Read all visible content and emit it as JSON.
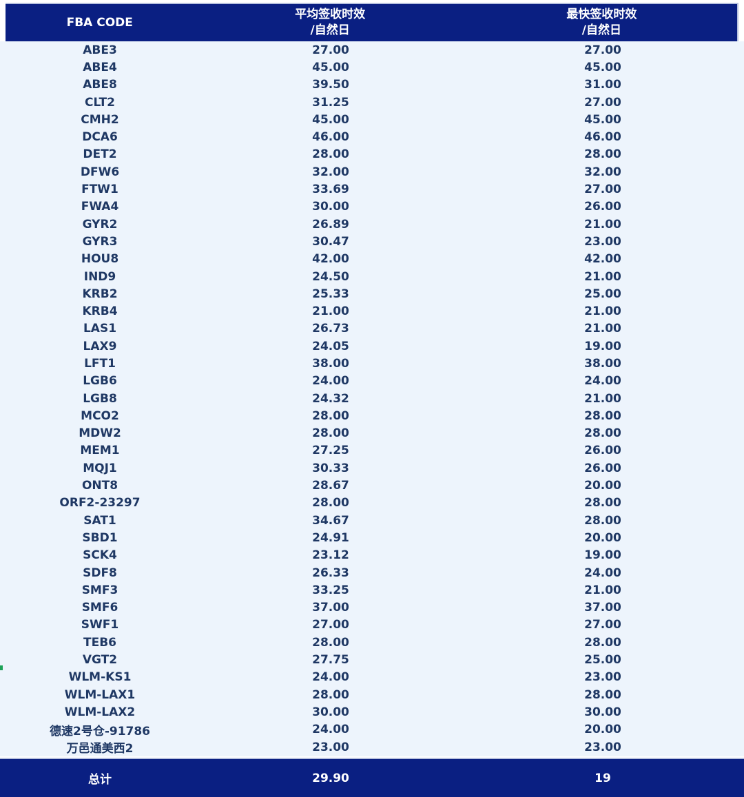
{
  "chart_data": {
    "type": "table",
    "title": "",
    "columns": [
      "FBA CODE",
      "平均签收时效/自然日",
      "最快签收时效/自然日"
    ],
    "header_lines": {
      "col1": [
        "FBA CODE"
      ],
      "col2": [
        "平均签收时效",
        "/自然日"
      ],
      "col3": [
        "最快签收时效",
        "/自然日"
      ]
    },
    "rows": [
      {
        "code": "ABE3",
        "avg": "27.00",
        "fastest": "27.00"
      },
      {
        "code": "ABE4",
        "avg": "45.00",
        "fastest": "45.00"
      },
      {
        "code": "ABE8",
        "avg": "39.50",
        "fastest": "31.00"
      },
      {
        "code": "CLT2",
        "avg": "31.25",
        "fastest": "27.00"
      },
      {
        "code": "CMH2",
        "avg": "45.00",
        "fastest": "45.00"
      },
      {
        "code": "DCA6",
        "avg": "46.00",
        "fastest": "46.00"
      },
      {
        "code": "DET2",
        "avg": "28.00",
        "fastest": "28.00"
      },
      {
        "code": "DFW6",
        "avg": "32.00",
        "fastest": "32.00"
      },
      {
        "code": "FTW1",
        "avg": "33.69",
        "fastest": "27.00"
      },
      {
        "code": "FWA4",
        "avg": "30.00",
        "fastest": "26.00"
      },
      {
        "code": "GYR2",
        "avg": "26.89",
        "fastest": "21.00"
      },
      {
        "code": "GYR3",
        "avg": "30.47",
        "fastest": "23.00"
      },
      {
        "code": "HOU8",
        "avg": "42.00",
        "fastest": "42.00"
      },
      {
        "code": "IND9",
        "avg": "24.50",
        "fastest": "21.00"
      },
      {
        "code": "KRB2",
        "avg": "25.33",
        "fastest": "25.00"
      },
      {
        "code": "KRB4",
        "avg": "21.00",
        "fastest": "21.00"
      },
      {
        "code": "LAS1",
        "avg": "26.73",
        "fastest": "21.00"
      },
      {
        "code": "LAX9",
        "avg": "24.05",
        "fastest": "19.00"
      },
      {
        "code": "LFT1",
        "avg": "38.00",
        "fastest": "38.00"
      },
      {
        "code": "LGB6",
        "avg": "24.00",
        "fastest": "24.00"
      },
      {
        "code": "LGB8",
        "avg": "24.32",
        "fastest": "21.00"
      },
      {
        "code": "MCO2",
        "avg": "28.00",
        "fastest": "28.00"
      },
      {
        "code": "MDW2",
        "avg": "28.00",
        "fastest": "28.00"
      },
      {
        "code": "MEM1",
        "avg": "27.25",
        "fastest": "26.00"
      },
      {
        "code": "MQJ1",
        "avg": "30.33",
        "fastest": "26.00"
      },
      {
        "code": "ONT8",
        "avg": "28.67",
        "fastest": "20.00"
      },
      {
        "code": "ORF2-23297",
        "avg": "28.00",
        "fastest": "28.00"
      },
      {
        "code": "SAT1",
        "avg": "34.67",
        "fastest": "28.00"
      },
      {
        "code": "SBD1",
        "avg": "24.91",
        "fastest": "20.00"
      },
      {
        "code": "SCK4",
        "avg": "23.12",
        "fastest": "19.00"
      },
      {
        "code": "SDF8",
        "avg": "26.33",
        "fastest": "24.00"
      },
      {
        "code": "SMF3",
        "avg": "33.25",
        "fastest": "21.00"
      },
      {
        "code": "SMF6",
        "avg": "37.00",
        "fastest": "37.00"
      },
      {
        "code": "SWF1",
        "avg": "27.00",
        "fastest": "27.00"
      },
      {
        "code": "TEB6",
        "avg": "28.00",
        "fastest": "28.00"
      },
      {
        "code": "VGT2",
        "avg": "27.75",
        "fastest": "25.00"
      },
      {
        "code": "WLM-KS1",
        "avg": "24.00",
        "fastest": "23.00"
      },
      {
        "code": "WLM-LAX1",
        "avg": "28.00",
        "fastest": "28.00"
      },
      {
        "code": "WLM-LAX2",
        "avg": "30.00",
        "fastest": "30.00"
      },
      {
        "code": "德速2号仓-91786",
        "avg": "24.00",
        "fastest": "20.00"
      },
      {
        "code": "万邑通美西2",
        "avg": "23.00",
        "fastest": "23.00"
      }
    ],
    "footer": {
      "label": "总计",
      "avg": "29.90",
      "fastest": "19"
    }
  },
  "colors": {
    "header_bg": "#0a1f82",
    "body_bg": "#edf4fc",
    "body_text": "#1f3864",
    "header_text": "#ffffff",
    "marker_green": "#1da258"
  }
}
